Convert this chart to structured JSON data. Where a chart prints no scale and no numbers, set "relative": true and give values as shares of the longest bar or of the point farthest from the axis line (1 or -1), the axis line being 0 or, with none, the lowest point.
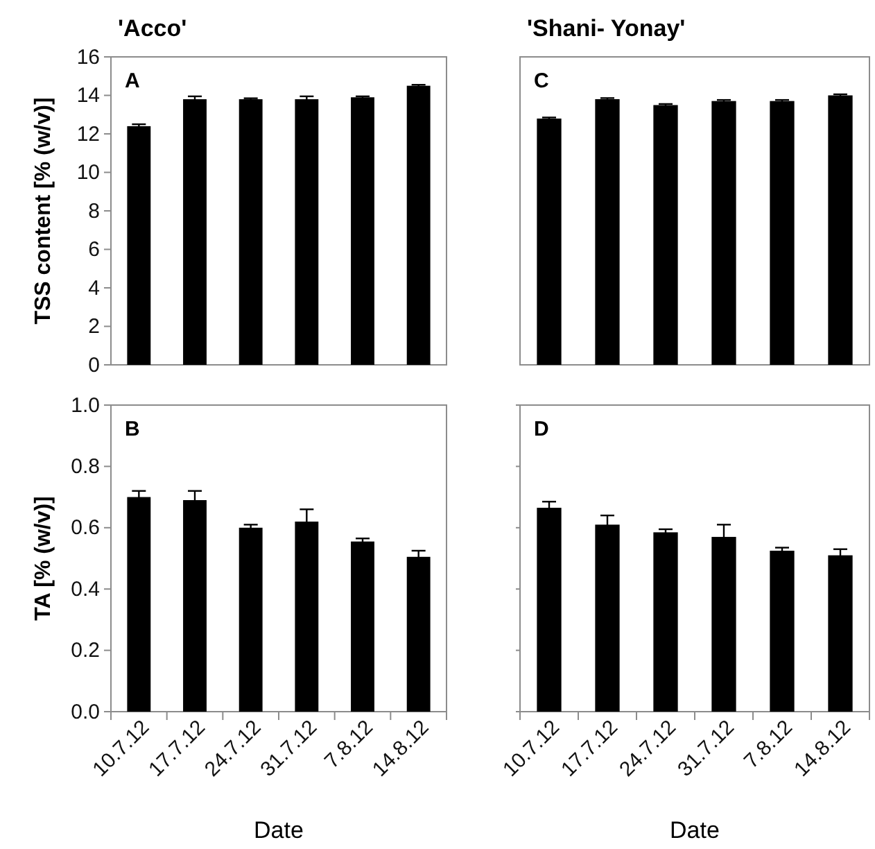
{
  "chart_data": [
    {
      "type": "bar",
      "title": "'Acco'",
      "ylabel": "TSS content [% (w/v)]",
      "annotations": [
        "A"
      ],
      "categories": [
        null,
        null,
        null,
        null,
        null,
        null
      ],
      "series": [
        {
          "color": "#000000",
          "values": [
            12.4,
            13.8,
            13.8,
            13.8,
            13.9,
            14.5
          ],
          "errors": [
            0.1,
            0.15,
            0.05,
            0.15,
            0.05,
            0.05
          ]
        }
      ],
      "ylim": [
        0,
        16
      ],
      "yticks": [
        0,
        2,
        4,
        6,
        8,
        10,
        12,
        14,
        16
      ],
      "tick_labels": "y"
    },
    {
      "type": "bar",
      "ylabel": "TA  [% (w/v)]",
      "xlabel": "Date",
      "annotations": [
        "B"
      ],
      "categories": [
        "10.7.12",
        "17.7.12",
        "24.7.12",
        "31.7.12",
        "7.8.12",
        "14.8.12"
      ],
      "series": [
        {
          "color": "#000000",
          "values": [
            0.7,
            0.69,
            0.6,
            0.62,
            0.555,
            0.505
          ],
          "errors": [
            0.02,
            0.03,
            0.01,
            0.04,
            0.01,
            0.02
          ]
        }
      ],
      "ylim": [
        0,
        1
      ],
      "yticks": [
        {
          "value": 0,
          "label": "0.0"
        },
        {
          "value": 0.2,
          "label": "0.2"
        },
        {
          "value": 0.4,
          "label": "0.4"
        },
        {
          "value": 0.6,
          "label": "0.6"
        },
        {
          "value": 0.8,
          "label": "0.8"
        },
        {
          "value": 1,
          "label": "1.0"
        }
      ]
    },
    {
      "type": "bar",
      "title": "'Shani- Yonay'",
      "annotations": [
        "C"
      ],
      "categories": [
        null,
        null,
        null,
        null,
        null,
        null
      ],
      "series": [
        {
          "color": "#000000",
          "values": [
            0.914,
            0.986,
            0.964,
            0.979,
            0.979,
            1
          ],
          "errors": [
            0.004,
            0.004,
            0.004,
            0.004,
            0.004,
            0.004
          ]
        }
      ],
      "relative": true,
      "tick_labels": false
    },
    {
      "type": "bar",
      "xlabel": "Date",
      "annotations": [
        "D"
      ],
      "categories": [
        "10.7.12",
        "17.7.12",
        "24.7.12",
        "31.7.12",
        "7.8.12",
        "14.8.12"
      ],
      "series": [
        {
          "color": "#000000",
          "values": [
            0.665,
            0.61,
            0.585,
            0.57,
            0.525,
            0.51
          ],
          "errors": [
            0.02,
            0.03,
            0.01,
            0.04,
            0.01,
            0.02
          ]
        }
      ],
      "ylim": [
        0,
        1
      ],
      "yticks": [
        {
          "value": 0,
          "label": null
        },
        {
          "value": 0.2,
          "label": null
        },
        {
          "value": 0.4,
          "label": null
        },
        {
          "value": 0.6,
          "label": null
        },
        {
          "value": 0.8,
          "label": null
        },
        {
          "value": 1,
          "label": null
        }
      ],
      "tick_labels": "x"
    }
  ]
}
